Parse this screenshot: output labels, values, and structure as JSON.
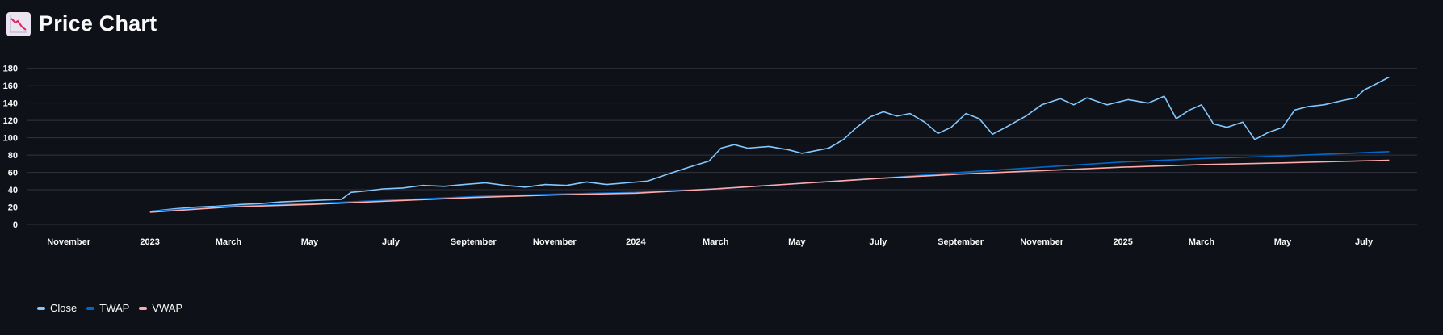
{
  "header": {
    "title": "Price Chart",
    "icon": "chart-decreasing-icon"
  },
  "colors": {
    "background": "#0e1117",
    "grid": "#31333f",
    "close": "#83c9ff",
    "twap": "#0068c9",
    "vwap": "#ffabab"
  },
  "chart_data": {
    "type": "line",
    "grid": true,
    "legend_position": "bottom-left",
    "ylim": [
      0,
      190
    ],
    "y_ticks": [
      0,
      20,
      40,
      60,
      80,
      100,
      120,
      140,
      160,
      180
    ],
    "xlim": [
      "2022-10-01",
      "2025-08-10"
    ],
    "x_ticks": [
      {
        "date": "2022-11-01",
        "label": "November"
      },
      {
        "date": "2023-01-01",
        "label": "2023"
      },
      {
        "date": "2023-03-01",
        "label": "March"
      },
      {
        "date": "2023-05-01",
        "label": "May"
      },
      {
        "date": "2023-07-01",
        "label": "July"
      },
      {
        "date": "2023-09-01",
        "label": "September"
      },
      {
        "date": "2023-11-01",
        "label": "November"
      },
      {
        "date": "2024-01-01",
        "label": "2024"
      },
      {
        "date": "2024-03-01",
        "label": "March"
      },
      {
        "date": "2024-05-01",
        "label": "May"
      },
      {
        "date": "2024-07-01",
        "label": "July"
      },
      {
        "date": "2024-09-01",
        "label": "September"
      },
      {
        "date": "2024-11-01",
        "label": "November"
      },
      {
        "date": "2025-01-01",
        "label": "2025"
      },
      {
        "date": "2025-03-01",
        "label": "March"
      },
      {
        "date": "2025-05-01",
        "label": "May"
      },
      {
        "date": "2025-07-01",
        "label": "July"
      }
    ],
    "series": [
      {
        "name": "Close",
        "color": "#83c9ff",
        "points": [
          [
            "2023-01-01",
            15
          ],
          [
            "2023-01-20",
            18
          ],
          [
            "2023-02-05",
            20
          ],
          [
            "2023-02-20",
            21
          ],
          [
            "2023-03-10",
            23
          ],
          [
            "2023-03-25",
            24
          ],
          [
            "2023-04-10",
            26
          ],
          [
            "2023-04-25",
            27
          ],
          [
            "2023-05-10",
            28
          ],
          [
            "2023-05-25",
            29
          ],
          [
            "2023-06-01",
            37
          ],
          [
            "2023-06-15",
            39
          ],
          [
            "2023-06-25",
            41
          ],
          [
            "2023-07-10",
            42
          ],
          [
            "2023-07-25",
            45
          ],
          [
            "2023-08-10",
            44
          ],
          [
            "2023-08-25",
            46
          ],
          [
            "2023-09-10",
            48
          ],
          [
            "2023-09-25",
            45
          ],
          [
            "2023-10-10",
            43
          ],
          [
            "2023-10-25",
            46
          ],
          [
            "2023-11-10",
            45
          ],
          [
            "2023-11-25",
            49
          ],
          [
            "2023-12-10",
            46
          ],
          [
            "2023-12-25",
            48
          ],
          [
            "2024-01-10",
            50
          ],
          [
            "2024-01-25",
            58
          ],
          [
            "2024-02-10",
            66
          ],
          [
            "2024-02-25",
            73
          ],
          [
            "2024-03-05",
            88
          ],
          [
            "2024-03-15",
            92
          ],
          [
            "2024-03-25",
            88
          ],
          [
            "2024-04-10",
            90
          ],
          [
            "2024-04-25",
            86
          ],
          [
            "2024-05-05",
            82
          ],
          [
            "2024-05-15",
            85
          ],
          [
            "2024-05-25",
            88
          ],
          [
            "2024-06-05",
            98
          ],
          [
            "2024-06-15",
            112
          ],
          [
            "2024-06-25",
            124
          ],
          [
            "2024-07-05",
            130
          ],
          [
            "2024-07-15",
            125
          ],
          [
            "2024-07-25",
            128
          ],
          [
            "2024-08-05",
            118
          ],
          [
            "2024-08-15",
            105
          ],
          [
            "2024-08-25",
            112
          ],
          [
            "2024-09-05",
            128
          ],
          [
            "2024-09-15",
            122
          ],
          [
            "2024-09-25",
            104
          ],
          [
            "2024-10-05",
            112
          ],
          [
            "2024-10-20",
            125
          ],
          [
            "2024-11-01",
            138
          ],
          [
            "2024-11-15",
            145
          ],
          [
            "2024-11-25",
            138
          ],
          [
            "2024-12-05",
            146
          ],
          [
            "2024-12-20",
            138
          ],
          [
            "2025-01-05",
            144
          ],
          [
            "2025-01-20",
            140
          ],
          [
            "2025-02-01",
            148
          ],
          [
            "2025-02-10",
            122
          ],
          [
            "2025-02-20",
            132
          ],
          [
            "2025-03-01",
            138
          ],
          [
            "2025-03-10",
            116
          ],
          [
            "2025-03-20",
            112
          ],
          [
            "2025-04-01",
            118
          ],
          [
            "2025-04-10",
            98
          ],
          [
            "2025-04-20",
            106
          ],
          [
            "2025-05-01",
            112
          ],
          [
            "2025-05-10",
            132
          ],
          [
            "2025-05-20",
            136
          ],
          [
            "2025-06-01",
            138
          ],
          [
            "2025-06-15",
            143
          ],
          [
            "2025-06-25",
            146
          ],
          [
            "2025-07-01",
            155
          ],
          [
            "2025-07-10",
            162
          ],
          [
            "2025-07-20",
            170
          ]
        ]
      },
      {
        "name": "TWAP",
        "color": "#0068c9",
        "points": [
          [
            "2023-01-01",
            15
          ],
          [
            "2023-03-01",
            21
          ],
          [
            "2023-05-01",
            24
          ],
          [
            "2023-07-01",
            28
          ],
          [
            "2023-09-01",
            32
          ],
          [
            "2023-11-01",
            35
          ],
          [
            "2024-01-01",
            37
          ],
          [
            "2024-03-01",
            41
          ],
          [
            "2024-05-01",
            47
          ],
          [
            "2024-07-01",
            53
          ],
          [
            "2024-09-01",
            60
          ],
          [
            "2024-11-01",
            66
          ],
          [
            "2025-01-01",
            72
          ],
          [
            "2025-03-01",
            76
          ],
          [
            "2025-05-01",
            79
          ],
          [
            "2025-07-20",
            84
          ]
        ]
      },
      {
        "name": "VWAP",
        "color": "#ffabab",
        "points": [
          [
            "2023-01-01",
            14
          ],
          [
            "2023-03-01",
            20
          ],
          [
            "2023-05-01",
            23
          ],
          [
            "2023-07-01",
            27
          ],
          [
            "2023-09-01",
            31
          ],
          [
            "2023-11-01",
            34
          ],
          [
            "2024-01-01",
            36
          ],
          [
            "2024-03-01",
            41
          ],
          [
            "2024-05-01",
            47
          ],
          [
            "2024-07-01",
            53
          ],
          [
            "2024-09-01",
            58
          ],
          [
            "2024-11-01",
            62
          ],
          [
            "2025-01-01",
            66
          ],
          [
            "2025-03-01",
            69
          ],
          [
            "2025-05-01",
            71
          ],
          [
            "2025-07-20",
            74
          ]
        ]
      }
    ]
  },
  "legend": [
    {
      "label": "Close",
      "color": "#83c9ff"
    },
    {
      "label": "TWAP",
      "color": "#0068c9"
    },
    {
      "label": "VWAP",
      "color": "#ffabab"
    }
  ]
}
